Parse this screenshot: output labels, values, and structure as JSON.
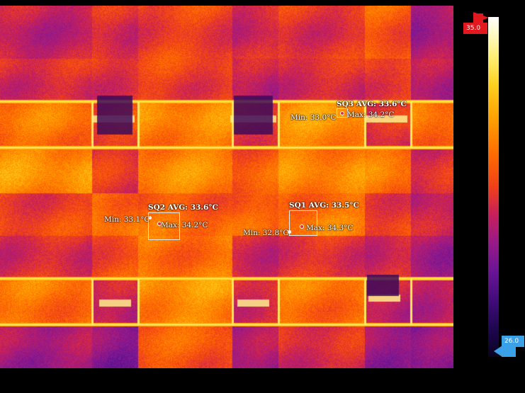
{
  "image": {
    "subject": "thermal image of tiled roof / panels",
    "palette": [
      "#1a0530",
      "#3e0c78",
      "#6a1496",
      "#9a1a86",
      "#c8205a",
      "#f0401a",
      "#ff6d00",
      "#ffa000",
      "#ffd020",
      "#ffee70",
      "#fffbd0",
      "#ffffff"
    ]
  },
  "scale": {
    "max_label": "35.0",
    "min_label": "26.0",
    "max_color": "#e2181f",
    "min_color": "#3aa0e8"
  },
  "measurements": {
    "sq1": {
      "title": "SQ1 AVG: 33.5°C",
      "min": "Min: 32.8°C",
      "max": "Max: 34.3°C"
    },
    "sq2": {
      "title": "SQ2 AVG: 33.6°C",
      "min": "Min: 33.1°C",
      "max": "Max: 34.2°C"
    },
    "sq3": {
      "title": "SQ3 AVG: 33.6°C",
      "min": "Min: 33.0°C",
      "max": "Max: 34.2°C"
    }
  }
}
